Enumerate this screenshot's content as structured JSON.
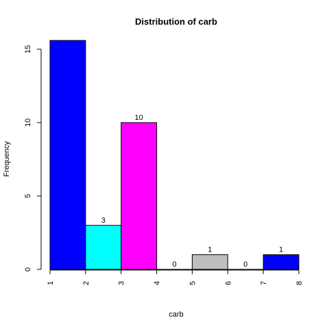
{
  "chart_data": {
    "type": "bar",
    "title": "Distribution of carb",
    "xlabel": "carb",
    "ylabel": "Frequency",
    "bins": [
      {
        "from": 1,
        "to": 2,
        "value": 15.6,
        "label": "",
        "color": "#0000ff"
      },
      {
        "from": 2,
        "to": 3,
        "value": 3,
        "label": "3",
        "color": "#00ffff"
      },
      {
        "from": 3,
        "to": 4,
        "value": 10,
        "label": "10",
        "color": "#ff00ff"
      },
      {
        "from": 4,
        "to": 5,
        "value": 0,
        "label": "0",
        "color": "#ffffff"
      },
      {
        "from": 5,
        "to": 6,
        "value": 1,
        "label": "1",
        "color": "#bebebe"
      },
      {
        "from": 6,
        "to": 7,
        "value": 0,
        "label": "0",
        "color": "#ffffff"
      },
      {
        "from": 7,
        "to": 8,
        "value": 1,
        "label": "1",
        "color": "#0000ff"
      }
    ],
    "xticks": [
      "1",
      "2",
      "3",
      "4",
      "5",
      "6",
      "7",
      "8"
    ],
    "yticks": [
      "0",
      "5",
      "10",
      "15"
    ],
    "xlim": [
      1,
      8
    ],
    "ylim": [
      0,
      15.6
    ],
    "grid": false,
    "legend": "none"
  }
}
